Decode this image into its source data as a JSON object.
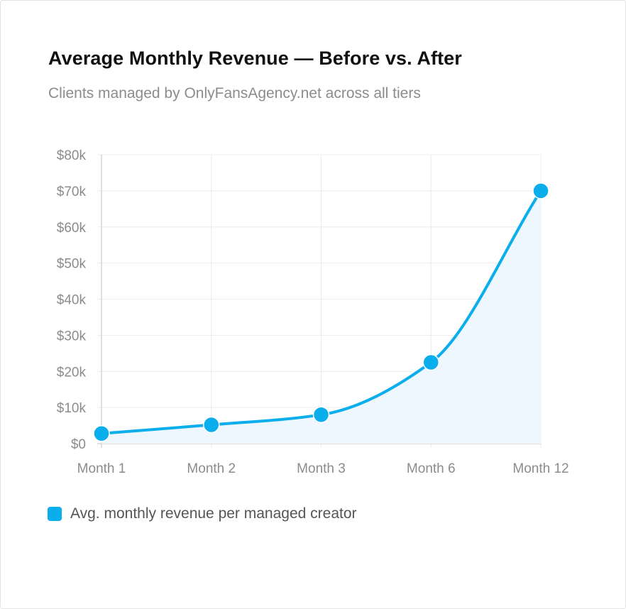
{
  "header": {
    "title": "Average Monthly Revenue — Before vs. After",
    "subtitle": "Clients managed by OnlyFansAgency.net across all tiers"
  },
  "chart_data": {
    "type": "line",
    "categories": [
      "Month 1",
      "Month 2",
      "Month 3",
      "Month 6",
      "Month 12"
    ],
    "series": [
      {
        "name": "Avg. monthly revenue per managed creator",
        "values": [
          2800,
          5200,
          8000,
          22500,
          70000
        ],
        "color": "#0aaeed",
        "fill": "#eef7fd"
      }
    ],
    "y_ticks": [
      "$0",
      "$10k",
      "$20k",
      "$30k",
      "$40k",
      "$50k",
      "$60k",
      "$70k",
      "$80k"
    ],
    "ylim": [
      0,
      80000
    ],
    "grid": true,
    "legend": "bottom-left"
  }
}
